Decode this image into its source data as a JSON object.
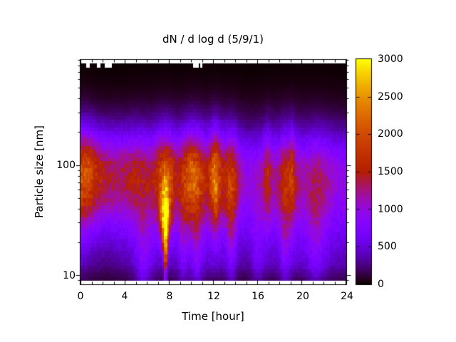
{
  "figure": {
    "background": "#ffffff"
  },
  "chart_data": {
    "type": "heatmap",
    "title": "dN / d log d (5/9/1)",
    "xlabel": "Time [hour]",
    "ylabel": "Particle size [nm]",
    "x_range_hours": [
      0,
      24
    ],
    "x_major_ticks": [
      0,
      4,
      8,
      12,
      16,
      20,
      24
    ],
    "x_minor_step_hours": 1,
    "y_scale": "log",
    "y_range_nm": [
      8.4,
      900
    ],
    "y_major_ticks_nm": [
      10,
      100
    ],
    "y_minor_ticks_nm": [
      9,
      20,
      30,
      40,
      50,
      60,
      70,
      80,
      90,
      200,
      300,
      400,
      500,
      600,
      700,
      800,
      900
    ],
    "colorbar": {
      "min": 0,
      "max": 3000,
      "ticks": [
        0,
        500,
        1000,
        1500,
        2000,
        2500,
        3000
      ],
      "palette": "gnuplot rgbformulae 7,5,15 (black-blue-violet-red-orange-yellow)"
    },
    "grid": {
      "time_bins": 144,
      "size_bins": 60
    },
    "field_model": {
      "band": {
        "center_log10_nm": 1.93,
        "sigma_up": 0.27,
        "sigma_down": 0.34,
        "amplitude_by_hour": [
          [
            0,
            1620
          ],
          [
            0.8,
            1680
          ],
          [
            1.5,
            1430
          ],
          [
            2.2,
            1270
          ],
          [
            3,
            1220
          ],
          [
            4,
            1140
          ],
          [
            4.8,
            1260
          ],
          [
            5.6,
            1180
          ],
          [
            6.3,
            1090
          ],
          [
            7.0,
            1400
          ],
          [
            7.65,
            1750
          ],
          [
            8.2,
            1480
          ],
          [
            8.7,
            1150
          ],
          [
            9.3,
            1290
          ],
          [
            9.9,
            1490
          ],
          [
            10.4,
            1440
          ],
          [
            10.9,
            1370
          ],
          [
            11.4,
            1190
          ],
          [
            11.9,
            1580
          ],
          [
            12.2,
            1720
          ],
          [
            12.7,
            1380
          ],
          [
            13.1,
            1240
          ],
          [
            13.5,
            1390
          ],
          [
            13.9,
            1290
          ],
          [
            14.4,
            890
          ],
          [
            15.1,
            720
          ],
          [
            15.8,
            700
          ],
          [
            16.4,
            840
          ],
          [
            16.9,
            1140
          ],
          [
            17.4,
            900
          ],
          [
            17.9,
            950
          ],
          [
            18.3,
            1170
          ],
          [
            18.8,
            1240
          ],
          [
            19.1,
            1330
          ],
          [
            19.5,
            990
          ],
          [
            20.1,
            800
          ],
          [
            20.9,
            940
          ],
          [
            21.6,
            970
          ],
          [
            22.3,
            850
          ],
          [
            23.1,
            700
          ],
          [
            24,
            680
          ]
        ]
      },
      "events": [
        {
          "hour": 7.65,
          "sigma_h": 0.3,
          "center_log10_nm": 1.42,
          "sigma_log_up": 0.26,
          "sigma_log_down": 0.36,
          "amplitude": 2300,
          "taper_below_log": 1.55
        },
        {
          "hour": 10.1,
          "sigma_h": 0.55,
          "center_log10_nm": 1.9,
          "sigma_log": 0.28,
          "amplitude": 430
        },
        {
          "hour": 12.15,
          "sigma_h": 0.22,
          "center_log10_nm": 1.82,
          "sigma_log": 0.3,
          "amplitude": 470
        },
        {
          "hour": 19.1,
          "sigma_h": 0.16,
          "center_log10_nm": 1.88,
          "sigma_log": 0.28,
          "amplitude": 240
        },
        {
          "hour": 16.9,
          "sigma_h": 0.18,
          "center_log10_nm": 1.85,
          "sigma_log": 0.28,
          "amplitude": 230
        },
        {
          "hour": 0.35,
          "sigma_h": 0.7,
          "center_log10_nm": 1.95,
          "sigma_log": 0.3,
          "amplitude": 200
        },
        {
          "hour": 5.7,
          "sigma_h": 0.5,
          "center_log10_nm": 1.15,
          "sigma_log": 0.35,
          "amplitude": 380
        },
        {
          "hour": 9.3,
          "sigma_h": 0.3,
          "center_log10_nm": 1.3,
          "sigma_log": 0.35,
          "amplitude": 300
        },
        {
          "hour": 10.5,
          "sigma_h": 0.35,
          "center_log10_nm": 1.2,
          "sigma_log": 0.3,
          "amplitude": 360
        },
        {
          "hour": 13.6,
          "sigma_h": 0.3,
          "center_log10_nm": 1.45,
          "sigma_log": 0.4,
          "amplitude": 430
        },
        {
          "hour": 16.0,
          "sigma_h": 0.4,
          "center_log10_nm": 1.25,
          "sigma_log": 0.35,
          "amplitude": 260
        },
        {
          "hour": 18.5,
          "sigma_h": 0.35,
          "center_log10_nm": 1.35,
          "sigma_log": 0.4,
          "amplitude": 360
        },
        {
          "hour": 21.3,
          "sigma_h": 0.55,
          "center_log10_nm": 1.3,
          "sigma_log": 0.35,
          "amplitude": 300
        }
      ],
      "background": {
        "amplitude": 450,
        "center_log10_nm": 1.45,
        "sigma_log": 0.5,
        "small_size_cut_log": 0.8,
        "noise": 0.12,
        "time_modulation": [
          [
            0,
            0.95
          ],
          [
            1,
            0.6
          ],
          [
            2.5,
            0.55
          ],
          [
            4,
            0.75
          ],
          [
            5.5,
            0.95
          ],
          [
            7,
            1.0
          ],
          [
            7.7,
            1.05
          ],
          [
            8.5,
            0.95
          ],
          [
            9.5,
            1.0
          ],
          [
            10.5,
            1.05
          ],
          [
            12,
            1.05
          ],
          [
            13.5,
            0.95
          ],
          [
            15,
            0.8
          ],
          [
            16.5,
            0.9
          ],
          [
            18,
            1.0
          ],
          [
            19,
            1.05
          ],
          [
            21,
            1.1
          ],
          [
            22.5,
            1.0
          ],
          [
            24,
            0.9
          ]
        ]
      },
      "missing_cells": {
        "top_row": true,
        "bottom_row": true,
        "row1_hour_spans": [
          [
            0.5,
            0.75
          ],
          [
            1.55,
            1.9
          ],
          [
            2.2,
            2.6
          ],
          [
            2.7,
            2.9
          ],
          [
            10.2,
            10.65
          ],
          [
            10.85,
            11.0
          ]
        ]
      }
    }
  }
}
